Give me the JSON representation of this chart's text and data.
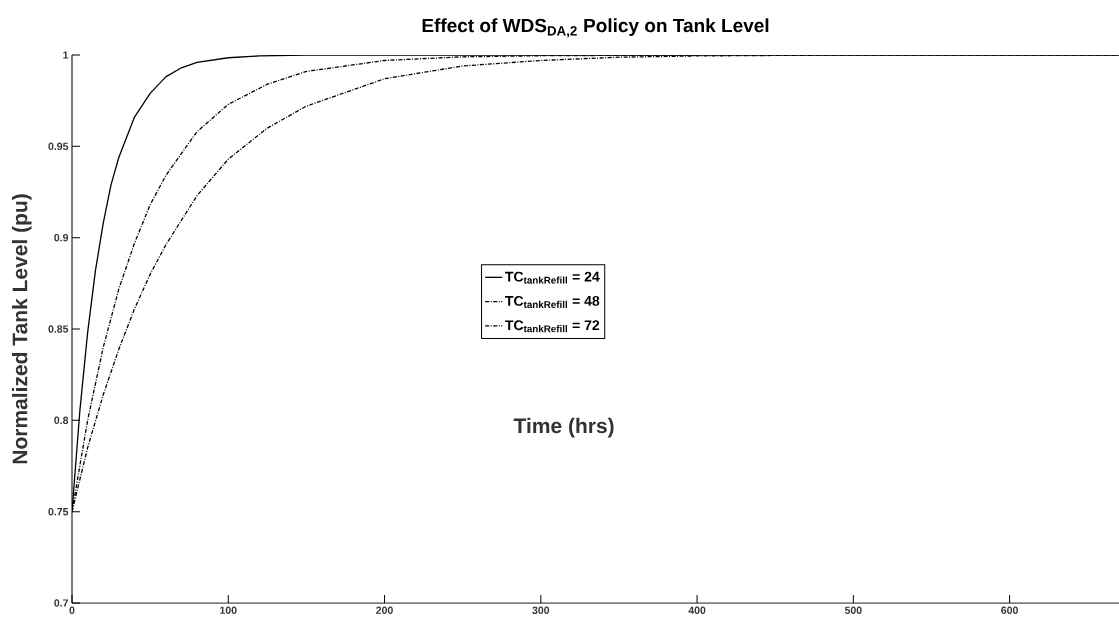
{
  "chart_data": {
    "type": "line",
    "title": "Effect of WDS$_{DA,2}$ Policy on Tank Level",
    "xlabel": "Time (hrs)",
    "ylabel": "Normalized Tank Level (pu)",
    "xlim": [
      0,
      670
    ],
    "ylim": [
      0.7,
      1
    ],
    "xticks": [
      0,
      100,
      200,
      300,
      400,
      500,
      600
    ],
    "yticks": [
      0.7,
      0.75,
      0.8,
      0.85,
      0.9,
      0.95,
      1
    ],
    "grid": false,
    "legend": "center",
    "series": [
      {
        "name": "\\text{TC}_{\\text{tankRefill}}\\text{ = 24}",
        "color": "#000000",
        "line_style": "solid",
        "x": [
          0,
          5,
          10,
          15,
          20,
          25,
          30,
          40,
          50,
          60,
          70,
          80,
          100,
          120,
          150,
          670
        ],
        "values": [
          0.75,
          0.805,
          0.848,
          0.882,
          0.908,
          0.929,
          0.944,
          0.966,
          0.979,
          0.988,
          0.993,
          0.996,
          0.9985,
          0.9995,
          1,
          1
        ]
      },
      {
        "name": "\\text{TC}_{\\text{tankRefill}}\\text{ = 48}",
        "color": "#000000",
        "line_style": "dashed",
        "x": [
          0,
          10,
          20,
          30,
          40,
          50,
          60,
          80,
          100,
          125,
          150,
          200,
          250,
          300,
          400
        ],
        "values": [
          0.75,
          0.8,
          0.84,
          0.872,
          0.897,
          0.918,
          0.934,
          0.958,
          0.973,
          0.984,
          0.991,
          0.997,
          0.999,
          0.9996,
          1
        ]
      },
      {
        "name": "\\text{TC}_{\\text{tankRefill}}\\text{ = 72}",
        "color": "#000000",
        "line_style": "dashed",
        "x": [
          0,
          10,
          20,
          30,
          40,
          50,
          60,
          80,
          100,
          125,
          150,
          200,
          250,
          300,
          350,
          400,
          500,
          670
        ],
        "values": [
          0.75,
          0.785,
          0.814,
          0.839,
          0.861,
          0.88,
          0.896,
          0.923,
          0.943,
          0.96,
          0.972,
          0.987,
          0.994,
          0.997,
          0.9988,
          0.9995,
          1,
          1
        ]
      }
    ]
  }
}
